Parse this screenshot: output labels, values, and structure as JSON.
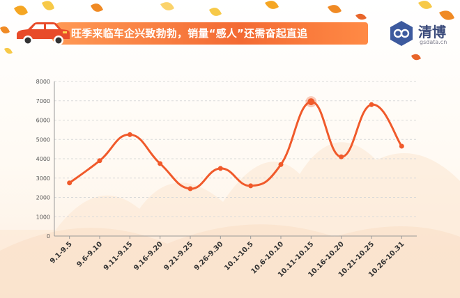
{
  "header": {
    "title": "旺季来临车企兴致勃勃，销量“感人”还需奋起直追"
  },
  "logo": {
    "name": "清博",
    "domain": "gsdata.cn"
  },
  "colors": {
    "line": "#f05a2b",
    "banner": "#f36a33",
    "grid": "#d9d9d9",
    "car": "#e84b2a"
  },
  "icons": [
    "car-icon",
    "qingbo-logo-icon",
    "autumn-leaf-icon"
  ],
  "chart_data": {
    "type": "line",
    "smooth": true,
    "categories": [
      "9.1-9.5",
      "9.6-9.10",
      "9.11-9.15",
      "9.16-9.20",
      "9.21-9.25",
      "9.26-9.30",
      "10.1-10.5",
      "10.6-10.10",
      "10.11-10.15",
      "10.16-10.20",
      "10.21-10.25",
      "10.26-10.31"
    ],
    "values": [
      2750,
      3900,
      5250,
      3750,
      2450,
      3500,
      2600,
      3700,
      6950,
      4100,
      6800,
      4650
    ],
    "highlight_index": 8,
    "yticks": [
      0,
      1000,
      2000,
      3000,
      4000,
      5000,
      6000,
      7000,
      8000
    ],
    "ylim": [
      0,
      8000
    ],
    "grid": true,
    "legend": "none",
    "title": "",
    "xlabel": "",
    "ylabel": ""
  }
}
